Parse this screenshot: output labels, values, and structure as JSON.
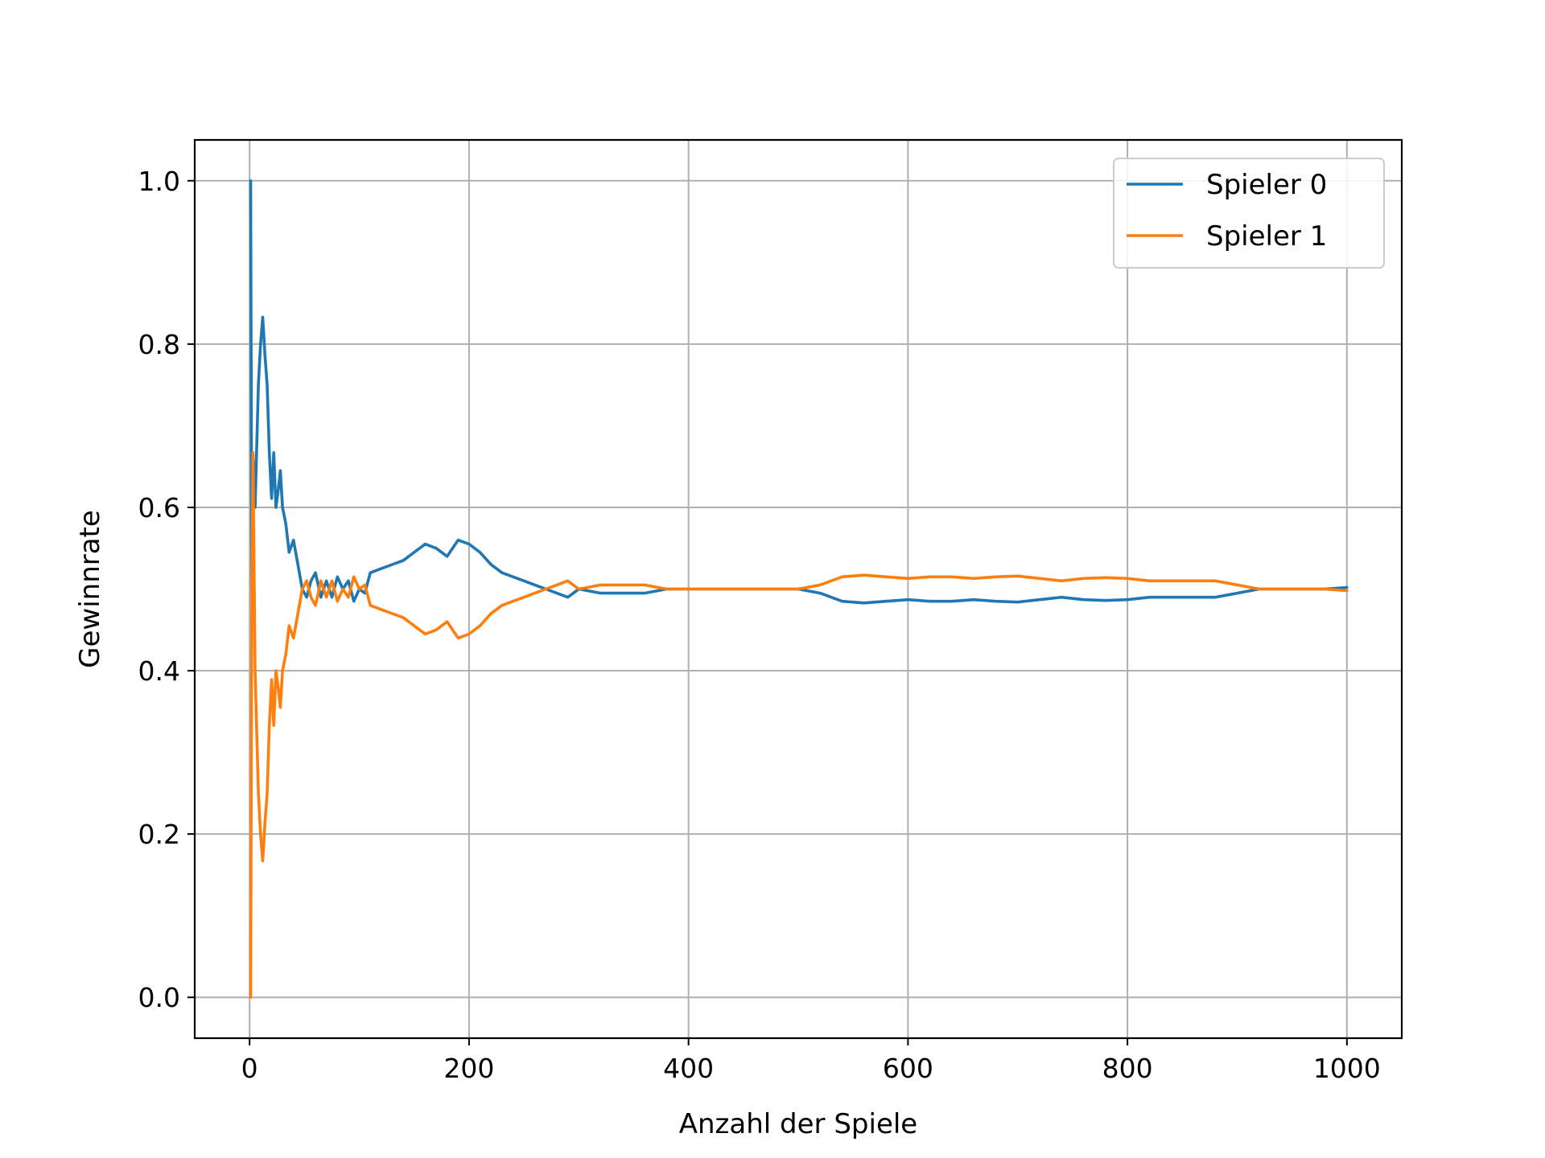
{
  "chart_data": {
    "type": "line",
    "xlabel": "Anzahl der Spiele",
    "ylabel": "Gewinnrate",
    "xlim": [
      -50,
      1050
    ],
    "ylim": [
      -0.05,
      1.05
    ],
    "grid": true,
    "legend_position": "top-right",
    "x_ticks": [
      0,
      200,
      400,
      600,
      800,
      1000
    ],
    "y_ticks": [
      0.0,
      0.2,
      0.4,
      0.6,
      0.8,
      1.0
    ],
    "x_tick_labels": [
      "0",
      "200",
      "400",
      "600",
      "800",
      "1000"
    ],
    "y_tick_labels": [
      "0.0",
      "0.2",
      "0.4",
      "0.6",
      "0.8",
      "1.0"
    ],
    "series": [
      {
        "name": "Spieler 0",
        "color": "#1f77b4",
        "points": [
          [
            1,
            1.0
          ],
          [
            2,
            0.5
          ],
          [
            3,
            0.667
          ],
          [
            5,
            0.6
          ],
          [
            8,
            0.75
          ],
          [
            10,
            0.8
          ],
          [
            12,
            0.833
          ],
          [
            14,
            0.786
          ],
          [
            16,
            0.75
          ],
          [
            18,
            0.667
          ],
          [
            20,
            0.611
          ],
          [
            22,
            0.667
          ],
          [
            24,
            0.6
          ],
          [
            26,
            0.62
          ],
          [
            28,
            0.645
          ],
          [
            30,
            0.6
          ],
          [
            33,
            0.58
          ],
          [
            36,
            0.545
          ],
          [
            40,
            0.56
          ],
          [
            44,
            0.53
          ],
          [
            48,
            0.5
          ],
          [
            52,
            0.49
          ],
          [
            56,
            0.51
          ],
          [
            60,
            0.52
          ],
          [
            65,
            0.49
          ],
          [
            70,
            0.51
          ],
          [
            75,
            0.49
          ],
          [
            80,
            0.515
          ],
          [
            85,
            0.5
          ],
          [
            90,
            0.51
          ],
          [
            95,
            0.485
          ],
          [
            100,
            0.5
          ],
          [
            105,
            0.495
          ],
          [
            110,
            0.52
          ],
          [
            120,
            0.525
          ],
          [
            130,
            0.53
          ],
          [
            140,
            0.535
          ],
          [
            150,
            0.545
          ],
          [
            160,
            0.555
          ],
          [
            170,
            0.55
          ],
          [
            180,
            0.54
          ],
          [
            190,
            0.56
          ],
          [
            200,
            0.555
          ],
          [
            210,
            0.545
          ],
          [
            220,
            0.53
          ],
          [
            230,
            0.52
          ],
          [
            240,
            0.515
          ],
          [
            250,
            0.51
          ],
          [
            260,
            0.505
          ],
          [
            270,
            0.5
          ],
          [
            280,
            0.495
          ],
          [
            290,
            0.49
          ],
          [
            300,
            0.5
          ],
          [
            320,
            0.495
          ],
          [
            340,
            0.495
          ],
          [
            360,
            0.495
          ],
          [
            380,
            0.5
          ],
          [
            400,
            0.5
          ],
          [
            420,
            0.5
          ],
          [
            440,
            0.5
          ],
          [
            460,
            0.5
          ],
          [
            480,
            0.5
          ],
          [
            500,
            0.5
          ],
          [
            520,
            0.495
          ],
          [
            540,
            0.485
          ],
          [
            560,
            0.483
          ],
          [
            580,
            0.485
          ],
          [
            600,
            0.487
          ],
          [
            620,
            0.485
          ],
          [
            640,
            0.485
          ],
          [
            660,
            0.487
          ],
          [
            680,
            0.485
          ],
          [
            700,
            0.484
          ],
          [
            720,
            0.487
          ],
          [
            740,
            0.49
          ],
          [
            760,
            0.487
          ],
          [
            780,
            0.486
          ],
          [
            800,
            0.487
          ],
          [
            820,
            0.49
          ],
          [
            840,
            0.49
          ],
          [
            860,
            0.49
          ],
          [
            880,
            0.49
          ],
          [
            900,
            0.495
          ],
          [
            920,
            0.5
          ],
          [
            940,
            0.5
          ],
          [
            960,
            0.5
          ],
          [
            980,
            0.5
          ],
          [
            1000,
            0.502
          ]
        ]
      },
      {
        "name": "Spieler 1",
        "color": "#ff7f0e",
        "points": [
          [
            1,
            0.0
          ],
          [
            2,
            0.5
          ],
          [
            3,
            0.667
          ],
          [
            5,
            0.4
          ],
          [
            8,
            0.25
          ],
          [
            10,
            0.2
          ],
          [
            12,
            0.167
          ],
          [
            14,
            0.214
          ],
          [
            16,
            0.25
          ],
          [
            18,
            0.333
          ],
          [
            20,
            0.389
          ],
          [
            22,
            0.333
          ],
          [
            24,
            0.4
          ],
          [
            26,
            0.38
          ],
          [
            28,
            0.355
          ],
          [
            30,
            0.4
          ],
          [
            33,
            0.42
          ],
          [
            36,
            0.455
          ],
          [
            40,
            0.44
          ],
          [
            44,
            0.47
          ],
          [
            48,
            0.5
          ],
          [
            52,
            0.51
          ],
          [
            56,
            0.49
          ],
          [
            60,
            0.48
          ],
          [
            65,
            0.51
          ],
          [
            70,
            0.49
          ],
          [
            75,
            0.51
          ],
          [
            80,
            0.485
          ],
          [
            85,
            0.5
          ],
          [
            90,
            0.49
          ],
          [
            95,
            0.515
          ],
          [
            100,
            0.5
          ],
          [
            105,
            0.505
          ],
          [
            110,
            0.48
          ],
          [
            120,
            0.475
          ],
          [
            130,
            0.47
          ],
          [
            140,
            0.465
          ],
          [
            150,
            0.455
          ],
          [
            160,
            0.445
          ],
          [
            170,
            0.45
          ],
          [
            180,
            0.46
          ],
          [
            190,
            0.44
          ],
          [
            200,
            0.445
          ],
          [
            210,
            0.455
          ],
          [
            220,
            0.47
          ],
          [
            230,
            0.48
          ],
          [
            240,
            0.485
          ],
          [
            250,
            0.49
          ],
          [
            260,
            0.495
          ],
          [
            270,
            0.5
          ],
          [
            280,
            0.505
          ],
          [
            290,
            0.51
          ],
          [
            300,
            0.5
          ],
          [
            320,
            0.505
          ],
          [
            340,
            0.505
          ],
          [
            360,
            0.505
          ],
          [
            380,
            0.5
          ],
          [
            400,
            0.5
          ],
          [
            420,
            0.5
          ],
          [
            440,
            0.5
          ],
          [
            460,
            0.5
          ],
          [
            480,
            0.5
          ],
          [
            500,
            0.5
          ],
          [
            520,
            0.505
          ],
          [
            540,
            0.515
          ],
          [
            560,
            0.517
          ],
          [
            580,
            0.515
          ],
          [
            600,
            0.513
          ],
          [
            620,
            0.515
          ],
          [
            640,
            0.515
          ],
          [
            660,
            0.513
          ],
          [
            680,
            0.515
          ],
          [
            700,
            0.516
          ],
          [
            720,
            0.513
          ],
          [
            740,
            0.51
          ],
          [
            760,
            0.513
          ],
          [
            780,
            0.514
          ],
          [
            800,
            0.513
          ],
          [
            820,
            0.51
          ],
          [
            840,
            0.51
          ],
          [
            860,
            0.51
          ],
          [
            880,
            0.51
          ],
          [
            900,
            0.505
          ],
          [
            920,
            0.5
          ],
          [
            940,
            0.5
          ],
          [
            960,
            0.5
          ],
          [
            980,
            0.5
          ],
          [
            1000,
            0.498
          ]
        ]
      }
    ]
  }
}
